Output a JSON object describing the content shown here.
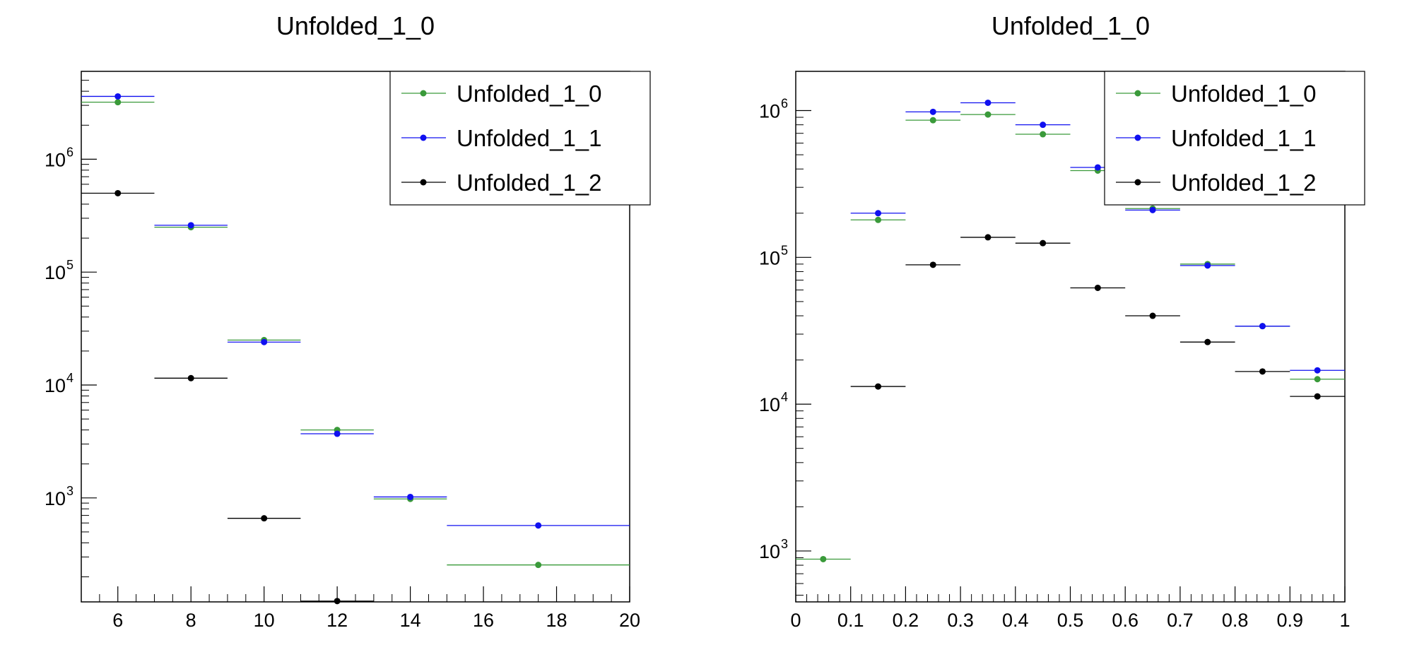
{
  "chart_data": [
    {
      "type": "scatter",
      "title": "Unfolded_1_0",
      "xlabel": "",
      "ylabel": "",
      "xlim": [
        5,
        20
      ],
      "ylim": [
        120,
        6000000
      ],
      "ylog": true,
      "x_ticks": [
        6,
        8,
        10,
        12,
        14,
        16,
        18,
        20
      ],
      "y_ticks": [
        {
          "mant": "10",
          "exp": "3",
          "value": 1000
        },
        {
          "mant": "10",
          "exp": "4",
          "value": 10000
        },
        {
          "mant": "10",
          "exp": "5",
          "value": 100000
        },
        {
          "mant": "10",
          "exp": "6",
          "value": 1000000
        }
      ],
      "legend_position": "top-right",
      "bins": [
        [
          5,
          7
        ],
        [
          7,
          9
        ],
        [
          9,
          11
        ],
        [
          11,
          13
        ],
        [
          13,
          15
        ],
        [
          15,
          20
        ]
      ],
      "series": [
        {
          "name": "Unfolded_1_0",
          "color": "#3a9a3a",
          "x": [
            6,
            8,
            10,
            12,
            14,
            17.5
          ],
          "values": [
            3200000,
            250000,
            25000,
            4000,
            980,
            255
          ]
        },
        {
          "name": "Unfolded_1_1",
          "color": "#1010f0",
          "x": [
            6,
            8,
            10,
            12,
            14,
            17.5
          ],
          "values": [
            3600000,
            260000,
            24000,
            3700,
            1020,
            570
          ]
        },
        {
          "name": "Unfolded_1_2",
          "color": "#000000",
          "x": [
            6,
            8,
            10,
            12,
            14
          ],
          "values": [
            500000,
            11500,
            null,
            122,
            null
          ],
          "extra_points": [
            {
              "x": 10,
              "y": 660
            }
          ]
        }
      ]
    },
    {
      "type": "scatter",
      "title": "Unfolded_1_0",
      "xlabel": "",
      "ylabel": "",
      "xlim": [
        0,
        1
      ],
      "ylim": [
        450,
        1850000
      ],
      "ylog": true,
      "x_ticks": [
        "0",
        "0.1",
        "0.2",
        "0.3",
        "0.4",
        "0.5",
        "0.6",
        "0.7",
        "0.8",
        "0.9",
        "1"
      ],
      "y_ticks": [
        {
          "mant": "10",
          "exp": "3",
          "value": 1000
        },
        {
          "mant": "10",
          "exp": "4",
          "value": 10000
        },
        {
          "mant": "10",
          "exp": "5",
          "value": 100000
        },
        {
          "mant": "10",
          "exp": "6",
          "value": 1000000
        }
      ],
      "legend_position": "top-right",
      "bins": [
        [
          0,
          0.1
        ],
        [
          0.1,
          0.2
        ],
        [
          0.2,
          0.3
        ],
        [
          0.3,
          0.4
        ],
        [
          0.4,
          0.5
        ],
        [
          0.5,
          0.6
        ],
        [
          0.6,
          0.7
        ],
        [
          0.7,
          0.8
        ],
        [
          0.8,
          0.9
        ],
        [
          0.9,
          1.0
        ]
      ],
      "series": [
        {
          "name": "Unfolded_1_0",
          "color": "#3a9a3a",
          "x": [
            0.05,
            0.15,
            0.25,
            0.35,
            0.45,
            0.55,
            0.65,
            0.75,
            0.85,
            0.95
          ],
          "values": [
            880,
            180000,
            860000,
            940000,
            690000,
            390000,
            215000,
            90000,
            34000,
            14800
          ]
        },
        {
          "name": "Unfolded_1_1",
          "color": "#1010f0",
          "x": [
            0.05,
            0.15,
            0.25,
            0.35,
            0.45,
            0.55,
            0.65,
            0.75,
            0.85,
            0.95
          ],
          "values": [
            null,
            200000,
            980000,
            1130000,
            800000,
            410000,
            210000,
            88000,
            34000,
            17000
          ]
        },
        {
          "name": "Unfolded_1_2",
          "color": "#000000",
          "x": [
            0.05,
            0.15,
            0.25,
            0.35,
            0.45,
            0.55,
            0.65,
            0.75,
            0.85,
            0.95
          ],
          "values": [
            null,
            13200,
            89000,
            137000,
            125000,
            62000,
            40000,
            26500,
            16700,
            11300
          ]
        }
      ]
    }
  ]
}
